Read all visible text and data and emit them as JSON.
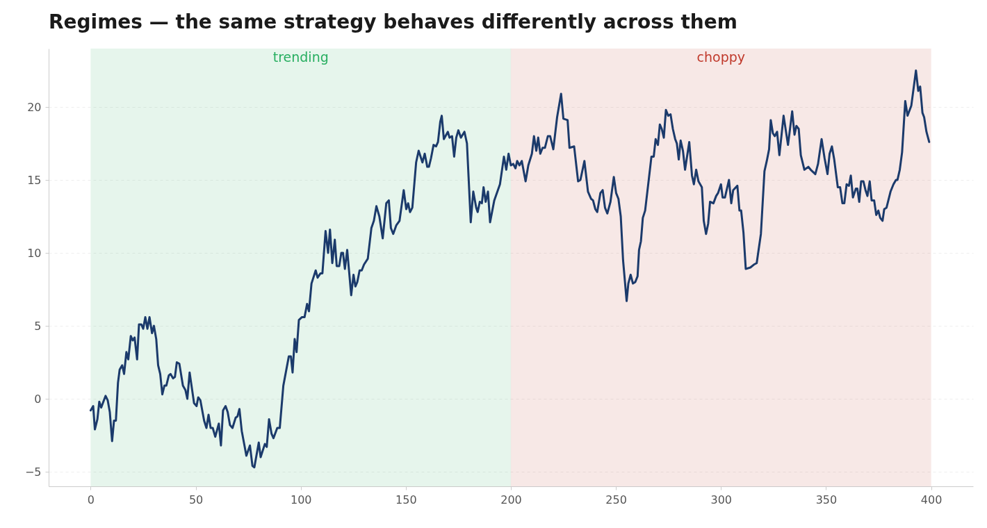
{
  "chart_data": {
    "type": "line",
    "title": "Regimes — the same strategy behaves differently across them",
    "xlim": [
      -20,
      420
    ],
    "xticks": [
      0,
      50,
      100,
      150,
      200,
      250,
      300,
      350,
      400
    ],
    "ylim": [
      -6,
      24
    ],
    "yticks": [
      -5,
      0,
      5,
      10,
      15,
      20
    ],
    "grid": "y",
    "bands": [
      {
        "axis": "x",
        "from": 0,
        "to": 200,
        "label": "trending",
        "color": "#27ae60"
      },
      {
        "axis": "x",
        "from": 200,
        "to": 400,
        "label": "choppy",
        "color": "#c0392b"
      }
    ],
    "series": [
      {
        "color": "#1b3a6b",
        "line_style": "solid",
        "x": [
          0,
          1.2,
          2,
          3.2,
          4.1,
          5,
          7.1,
          8.1,
          9.1,
          10.2,
          11.1,
          12,
          13,
          13.8,
          15,
          15.9,
          17,
          17.9,
          19.1,
          20,
          20.9,
          22.1,
          23,
          24.1,
          25,
          26,
          27,
          28,
          29.2,
          30.1,
          31.2,
          32.1,
          33.1,
          34.1,
          35.1,
          36,
          37.2,
          38,
          39.2,
          40.1,
          41,
          42.2,
          43.9,
          45.1,
          46,
          47.1,
          48.3,
          49.2,
          50.4,
          51.2,
          52.2,
          54,
          55.1,
          56.1,
          57.1,
          58.1,
          59.3,
          61,
          62,
          63,
          64.2,
          65.2,
          66.3,
          67.5,
          69,
          69.9,
          70.8,
          71.9,
          73.2,
          74.1,
          75.8,
          77,
          77.9,
          80,
          80.9,
          82.9,
          83.8,
          84.9,
          86.1,
          87,
          88.8,
          90,
          91.7,
          94.3,
          95.3,
          96.1,
          97.1,
          98,
          99.1,
          100.6,
          101.8,
          103,
          103.9,
          105.1,
          107.1,
          108,
          109.4,
          110.3,
          111.8,
          113,
          113.9,
          115,
          116.2,
          117.1,
          118.3,
          119.3,
          120.1,
          121,
          122.1,
          124,
          125.1,
          126,
          126.9,
          128,
          129,
          130.1,
          131.9,
          133.6,
          134.8,
          136,
          137.4,
          139,
          140.7,
          141.9,
          142.9,
          144,
          145.5,
          147,
          149,
          150.2,
          151.1,
          152,
          153.1,
          154.9,
          156.1,
          157.9,
          159,
          160.2,
          161,
          162,
          163.2,
          164.4,
          165.3,
          166.4,
          167.1,
          168.1,
          170,
          170.8,
          172,
          173,
          174,
          175,
          176.2,
          177.9,
          179.1,
          180.9,
          182.1,
          183.5,
          184.2,
          185.2,
          186.2,
          187,
          188,
          189.1,
          190.1,
          192.1,
          194.8,
          196.7,
          197.8,
          198.9,
          200,
          201.1,
          202.2,
          203,
          204.1,
          205.2,
          207,
          208.3,
          210,
          211,
          212.1,
          213,
          214,
          215.1,
          216.2,
          217.6,
          218.7,
          220.2,
          222,
          223.9,
          225,
          227,
          227.9,
          230.1,
          232,
          233.1,
          235,
          236.7,
          238.2,
          239.1,
          240.2,
          241.1,
          242.6,
          243.7,
          244.8,
          245.9,
          247.4,
          249,
          250.1,
          251.2,
          252.3,
          253.4,
          255.1,
          255.9,
          257,
          258.1,
          259.2,
          260.3,
          261,
          261.9,
          262.8,
          263.9,
          266.1,
          266.9,
          268,
          268.9,
          270,
          270.9,
          271.8,
          272.8,
          273.8,
          274.9,
          276,
          277.1,
          278.2,
          279,
          279.9,
          280.8,
          281.9,
          282.9,
          284.9,
          286.2,
          287.1,
          288.2,
          289.3,
          290.9,
          291.8,
          292.9,
          293.9,
          294.8,
          296.4,
          297.7,
          298.6,
          300,
          300.8,
          301.9,
          303.8,
          304.9,
          305.8,
          307.8,
          308.8,
          309.6,
          310.7,
          311.8,
          314,
          315.7,
          317,
          319,
          320.7,
          321.8,
          322.9,
          323.7,
          324.7,
          325.6,
          326.7,
          327.8,
          329.8,
          331.9,
          333.9,
          335,
          335.9,
          337,
          338,
          339.7,
          341.6,
          342.7,
          344.9,
          346.2,
          347.9,
          349.3,
          350.7,
          351.7,
          352.8,
          353.9,
          355.6,
          356.7,
          357.8,
          358.7,
          359.8,
          360.9,
          361.8,
          362.8,
          364.2,
          364.9,
          365.8,
          366.7,
          367.8,
          368.8,
          369.7,
          370.8,
          371.7,
          372.9,
          373.9,
          374.9,
          375.8,
          376.9,
          377.7,
          378.8,
          380.7,
          382.1,
          383.3,
          384,
          385.1,
          386.2,
          387.7,
          388.8,
          390.6,
          392.8,
          393.9,
          394.8,
          395.9,
          396.7,
          397.8,
          399.1
        ],
        "values": [
          -0.8,
          -0.5,
          -2.1,
          -1.4,
          -0.2,
          -0.6,
          0.2,
          -0.1,
          -0.9,
          -2.9,
          -1.5,
          -1.5,
          1.1,
          2,
          2.3,
          1.7,
          3.2,
          2.7,
          4.3,
          4,
          4.2,
          2.7,
          5.1,
          5.1,
          4.8,
          5.6,
          4.8,
          5.6,
          4.5,
          5,
          4.1,
          2.3,
          1.7,
          0.3,
          0.9,
          0.9,
          1.6,
          1.7,
          1.4,
          1.5,
          2.5,
          2.4,
          0.9,
          0.6,
          0,
          1.8,
          0.6,
          -0.3,
          -0.5,
          0.1,
          -0.1,
          -1.5,
          -2,
          -1.1,
          -2,
          -2,
          -2.6,
          -1.7,
          -3.2,
          -0.8,
          -0.5,
          -0.9,
          -1.8,
          -2,
          -1.3,
          -1.2,
          -0.7,
          -2.2,
          -3.2,
          -3.9,
          -3.2,
          -4.6,
          -4.7,
          -3,
          -4,
          -3.1,
          -3.3,
          -1.4,
          -2.4,
          -2.7,
          -2,
          -2,
          0.9,
          2.9,
          2.9,
          1.8,
          4.1,
          3.2,
          5.4,
          5.6,
          5.6,
          6.5,
          6,
          7.9,
          8.8,
          8.3,
          8.6,
          8.6,
          11.5,
          10,
          11.6,
          9.3,
          10.9,
          9.1,
          9.1,
          10,
          10,
          8.9,
          10.2,
          7.1,
          8.5,
          7.7,
          8,
          8.8,
          8.8,
          9.2,
          9.6,
          11.7,
          12.2,
          13.2,
          12.5,
          11,
          13.4,
          13.6,
          11.7,
          11.3,
          11.9,
          12.2,
          14.3,
          13,
          13.4,
          12.8,
          13.1,
          16.2,
          17,
          16.2,
          16.8,
          15.9,
          15.9,
          16.5,
          17.4,
          17.3,
          17.6,
          19,
          19.4,
          17.8,
          18.3,
          17.9,
          18,
          16.6,
          17.9,
          18.4,
          17.9,
          18.3,
          17.5,
          12.1,
          14.2,
          13.1,
          12.8,
          13.5,
          13.4,
          14.5,
          13.5,
          14.2,
          12.1,
          13.6,
          14.7,
          16.6,
          15.7,
          16.8,
          16,
          16.1,
          15.8,
          16.3,
          16,
          16.3,
          14.9,
          16,
          16.8,
          18,
          17,
          17.9,
          16.8,
          17.2,
          17.2,
          18,
          18,
          17.1,
          19.3,
          20.9,
          19.2,
          19.1,
          17.2,
          17.3,
          14.9,
          15,
          16.3,
          14.2,
          13.7,
          13.6,
          13,
          12.8,
          14.1,
          14.3,
          13.1,
          12.7,
          13.5,
          15.2,
          14.1,
          13.7,
          12.5,
          9.5,
          6.7,
          7.9,
          8.5,
          7.9,
          8,
          8.4,
          10.2,
          10.8,
          12.4,
          12.9,
          15.6,
          16.6,
          16.6,
          17.8,
          17.4,
          18.8,
          18.5,
          17.9,
          19.8,
          19.4,
          19.5,
          18.5,
          17.8,
          17.5,
          16.4,
          17.7,
          17,
          15.7,
          17.6,
          15.3,
          14.7,
          15.7,
          14.9,
          14.5,
          12.2,
          11.3,
          12,
          13.5,
          13.4,
          13.9,
          14.1,
          14.7,
          13.8,
          13.8,
          15,
          13.4,
          14.3,
          14.6,
          12.9,
          12.9,
          11.4,
          8.9,
          9,
          9.2,
          9.3,
          11.3,
          15.6,
          16.3,
          17.1,
          19.1,
          18.2,
          18,
          18.3,
          16.7,
          19.4,
          17.4,
          19.7,
          18.1,
          18.7,
          18.5,
          16.7,
          15.7,
          15.9,
          15.7,
          15.4,
          16.1,
          17.8,
          16.5,
          15.4,
          16.8,
          17.3,
          16.4,
          14.5,
          14.5,
          13.4,
          13.4,
          14.7,
          14.6,
          15.3,
          13.8,
          14.4,
          14.4,
          13.5,
          14.9,
          14.9,
          14.3,
          13.9,
          14.9,
          13.6,
          13.6,
          12.6,
          12.9,
          12.4,
          12.2,
          13,
          13.1,
          14.2,
          14.7,
          15,
          15,
          15.7,
          16.9,
          20.4,
          19.4,
          20.1,
          22.5,
          21.1,
          21.4,
          19.6,
          19.3,
          18.3,
          17.6
        ]
      }
    ]
  }
}
